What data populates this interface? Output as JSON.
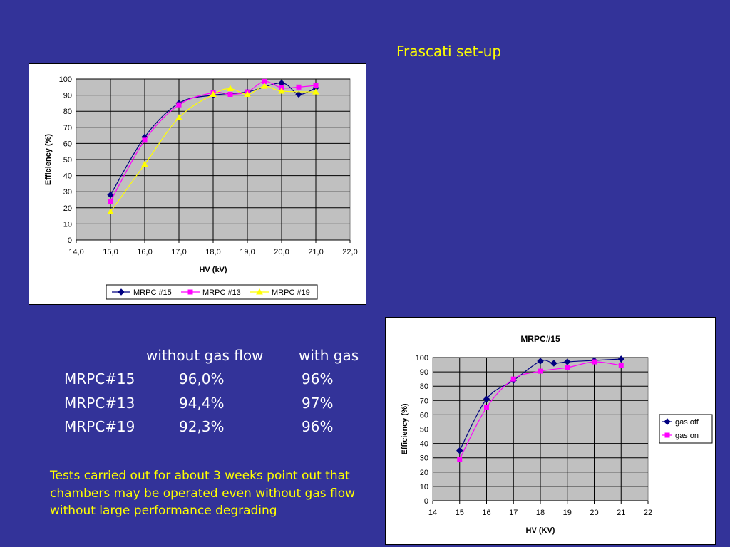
{
  "slide": {
    "title": "Frascati set-up",
    "table": {
      "headers": [
        "without gas flow",
        "with gas"
      ],
      "rows": [
        {
          "label": "MRPC#15",
          "without_gas": "96,0%",
          "with_gas": "96%"
        },
        {
          "label": "MRPC#13",
          "without_gas": "94,4%",
          "with_gas": "97%"
        },
        {
          "label": "MRPC#19",
          "without_gas": "92,3%",
          "with_gas": "96%"
        }
      ]
    },
    "note": "Tests carried out for about 3  weeks point out that chambers may be operated even without gas flow without large performance degrading"
  },
  "colors": {
    "background": "#333399",
    "accent_text": "#ffff00",
    "plot_area": "#c0c0c0"
  },
  "chart_data": [
    {
      "type": "line",
      "title": "",
      "xlabel": "HV (kV)",
      "ylabel": "Efficiency (%)",
      "xlim": [
        14,
        22
      ],
      "ylim": [
        0,
        100
      ],
      "x_ticks": [
        "14,0",
        "15,0",
        "16,0",
        "17,0",
        "18,0",
        "19,0",
        "20,0",
        "21,0",
        "22,0"
      ],
      "y_ticks": [
        "0",
        "10",
        "20",
        "30",
        "40",
        "50",
        "60",
        "70",
        "80",
        "90",
        "100"
      ],
      "grid": true,
      "legend": "bottom",
      "series": [
        {
          "name": "MRPC #15",
          "color": "#000080",
          "marker": "diamond",
          "x": [
            15,
            16,
            17,
            18,
            19,
            20,
            20.5,
            21
          ],
          "y": [
            28,
            64,
            85,
            90,
            92,
            97.5,
            90.5,
            94.5
          ]
        },
        {
          "name": "MRPC #13",
          "color": "#ff00ff",
          "marker": "square",
          "x": [
            15,
            16,
            17,
            18,
            18.5,
            19,
            19.5,
            20,
            20.5,
            21
          ],
          "y": [
            24,
            62,
            84,
            91.5,
            90.5,
            92,
            98.5,
            94.5,
            95,
            96
          ]
        },
        {
          "name": "MRPC #19",
          "color": "#ffff00",
          "marker": "triangle",
          "x": [
            15,
            16,
            17,
            18,
            18.5,
            19,
            19.5,
            20,
            21
          ],
          "y": [
            17.5,
            47,
            76,
            90.5,
            94,
            90.5,
            95.5,
            92.5,
            92
          ]
        }
      ]
    },
    {
      "type": "line",
      "title": "MRPC#15",
      "xlabel": "HV (KV)",
      "ylabel": "Efficiency (%)",
      "xlim": [
        14,
        22
      ],
      "ylim": [
        0,
        100
      ],
      "x_ticks": [
        "14",
        "15",
        "16",
        "17",
        "18",
        "19",
        "20",
        "21",
        "22"
      ],
      "y_ticks": [
        "0",
        "10",
        "20",
        "30",
        "40",
        "50",
        "60",
        "70",
        "80",
        "90",
        "100"
      ],
      "grid": true,
      "legend": "right",
      "series": [
        {
          "name": "gas off",
          "color": "#000080",
          "marker": "diamond",
          "x": [
            15,
            16,
            17,
            18,
            18.5,
            19,
            20,
            21
          ],
          "y": [
            35,
            71,
            84,
            97.5,
            96,
            97,
            98,
            99
          ]
        },
        {
          "name": "gas on",
          "color": "#ff00ff",
          "marker": "square",
          "x": [
            15,
            16,
            17,
            18,
            19,
            20,
            21
          ],
          "y": [
            29,
            65,
            85,
            90.5,
            93,
            97,
            94.5
          ]
        }
      ]
    }
  ]
}
